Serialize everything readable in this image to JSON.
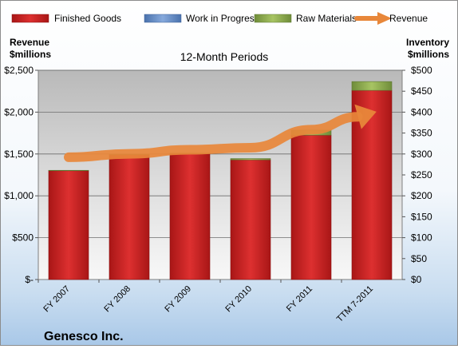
{
  "chart_data": {
    "type": "bar",
    "title": "12-Month Periods",
    "company": "Genesco Inc.",
    "left_axis_label": [
      "Revenue",
      "$millions"
    ],
    "right_axis_label": [
      "Inventory",
      "$millions"
    ],
    "categories": [
      "FY 2007",
      "FY 2008",
      "FY 2009",
      "FY 2010",
      "FY 2011",
      "TTM 7-2011"
    ],
    "stacked": true,
    "left_axis": {
      "min": 0,
      "max": 2500,
      "ticks": [
        "$-",
        "$500",
        "$1,000",
        "$1,500",
        "$2,000",
        "$2,500"
      ]
    },
    "right_axis": {
      "min": 0,
      "max": 500,
      "ticks": [
        "$0",
        "$50",
        "$100",
        "$150",
        "$200",
        "$250",
        "$300",
        "$350",
        "$400",
        "$450",
        "$500"
      ]
    },
    "series": [
      {
        "name": "Finished Goods",
        "axis": "right",
        "kind": "bar",
        "color": "#d42a2a",
        "values": [
          260,
          298,
          301,
          286,
          345,
          452
        ]
      },
      {
        "name": "Work in Progress",
        "axis": "right",
        "kind": "bar",
        "color": "#6a93cc",
        "values": [
          0,
          0,
          0,
          0,
          0,
          0
        ]
      },
      {
        "name": "Raw Materials",
        "axis": "right",
        "kind": "bar",
        "color": "#9bbb59",
        "values": [
          1,
          1,
          1,
          3,
          12,
          21
        ]
      },
      {
        "name": "Revenue",
        "axis": "left",
        "kind": "arrow-line",
        "color": "#e8873a",
        "values": [
          1461,
          1502,
          1551,
          1575,
          1790,
          1990
        ]
      }
    ],
    "grid": true,
    "legend_position": "top"
  }
}
